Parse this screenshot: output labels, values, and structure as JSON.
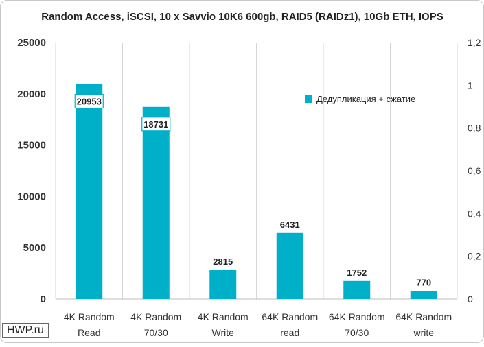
{
  "chart_data": {
    "type": "bar",
    "title": "Random Access, iSCSI, 10 x Savvio 10K6 600gb, RAID5 (RAIDz1), 10Gb ETH, IOPS",
    "categories": [
      [
        "4K Random",
        "Read"
      ],
      [
        "4K Random",
        "70/30"
      ],
      [
        "4K Random",
        "Write"
      ],
      [
        "64K Random",
        "read"
      ],
      [
        "64K Random",
        "70/30"
      ],
      [
        "64K Random",
        "write"
      ]
    ],
    "series": [
      {
        "name": "Дедупликация + сжатие",
        "values": [
          20953,
          18731,
          2815,
          6431,
          1752,
          770
        ]
      }
    ],
    "ylim": [
      0,
      25000
    ],
    "yticks": [
      "0",
      "5000",
      "10000",
      "15000",
      "20000",
      "25000"
    ],
    "y2lim": [
      0,
      1.2
    ],
    "y2ticks": [
      "0",
      "0,2",
      "0,4",
      "0,6",
      "0,8",
      "1",
      "1,2"
    ],
    "data_labels": [
      "20953",
      "18731",
      "2815",
      "6431",
      "1752",
      "770"
    ],
    "boxed_labels": [
      true,
      true,
      false,
      false,
      false,
      false
    ],
    "grid": "vertical",
    "legend_position": "top-right",
    "color": "#00b0c8"
  },
  "watermark": "HWP.ru"
}
